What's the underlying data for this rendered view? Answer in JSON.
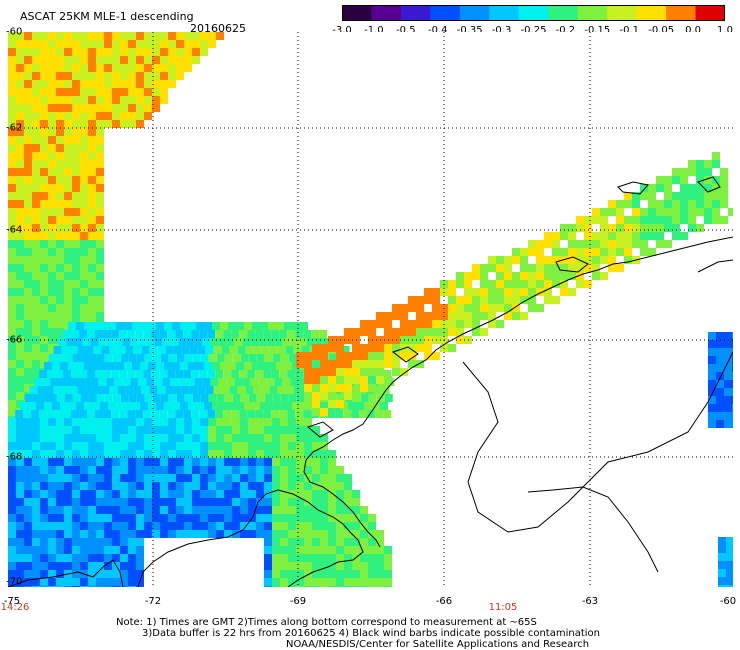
{
  "header": {
    "title": "ASCAT 25KM MLE-1 descending",
    "date": "20160625"
  },
  "colorbar": {
    "ticks": [
      "-3.0",
      "-1.0",
      "-0.5",
      "-0.4",
      "-0.35",
      "-0.3",
      "-0.25",
      "-0.2",
      "-0.15",
      "-0.1",
      "-0.05",
      "0.0",
      "1.0"
    ],
    "colors": [
      "#2a0040",
      "#5a0090",
      "#3a1ad0",
      "#0050ff",
      "#0090ff",
      "#00c8ff",
      "#00f0f0",
      "#30f080",
      "#80f040",
      "#c8f020",
      "#ffe000",
      "#ff8000",
      "#e00000"
    ]
  },
  "axes": {
    "lat_labels": [
      "-60",
      "-62",
      "-64",
      "-66",
      "-68",
      "-70"
    ],
    "lon_labels": [
      "-75",
      "-72",
      "-69",
      "-66",
      "-63",
      "-60"
    ]
  },
  "times": {
    "left": "14:26",
    "right": "11:05"
  },
  "notes": {
    "line1": "Note: 1) Times are GMT 2)Times along bottom correspond to measurement at ~65S",
    "line2": "3)Data buffer is 22 hrs from 20160625 4) Black wind barbs indicate possible contamination",
    "line3": "NOAA/NESDIS/Center for Satellite Applications and Research"
  }
}
